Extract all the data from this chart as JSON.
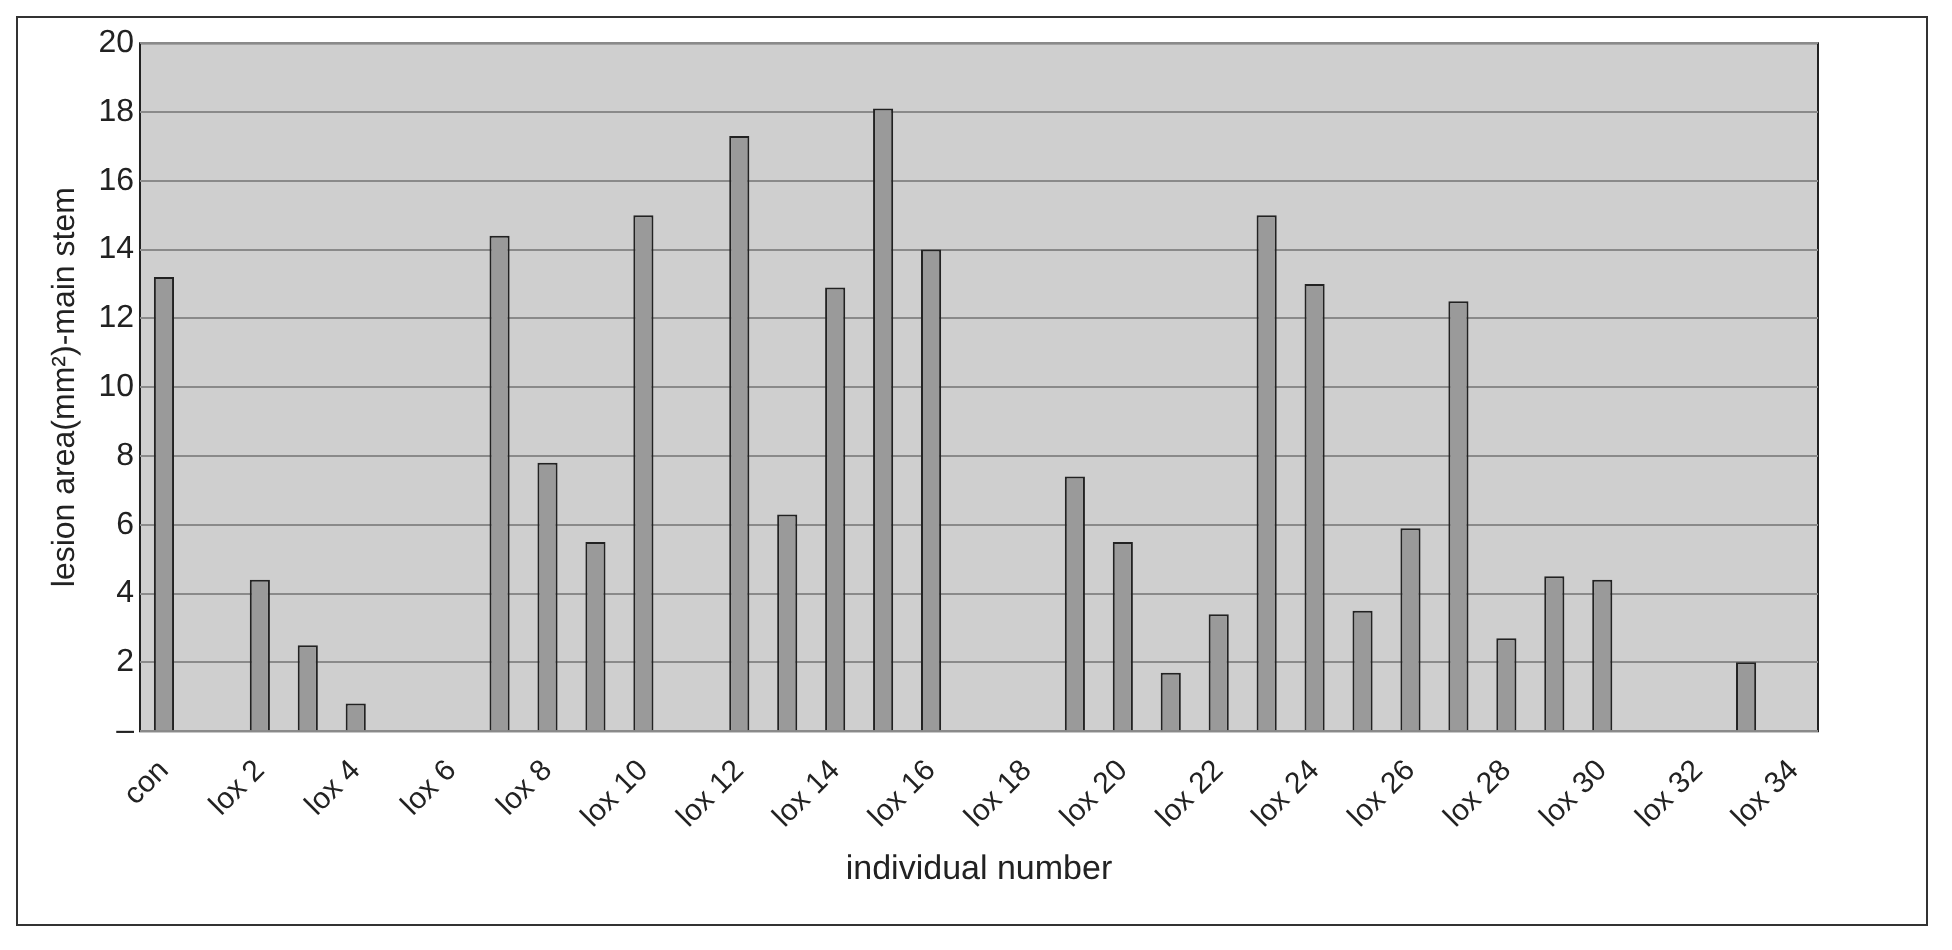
{
  "chart_data": {
    "type": "bar",
    "xlabel": "individual number",
    "ylabel": "lesion area(mm²)-main stem",
    "categories": [
      "con",
      null,
      "lox 2",
      null,
      "lox 4",
      null,
      "lox 6",
      null,
      "lox 8",
      null,
      "lox 10",
      null,
      "lox 12",
      null,
      "lox 14",
      null,
      "lox 16",
      null,
      "lox 18",
      null,
      "lox 20",
      null,
      "lox 22",
      null,
      "lox 24",
      null,
      "lox 26",
      null,
      "lox 28",
      null,
      "lox 30",
      null,
      "lox 32",
      null,
      "lox 34"
    ],
    "values": [
      13.2,
      0,
      4.4,
      2.5,
      0.8,
      0,
      0,
      14.4,
      7.8,
      5.5,
      15.0,
      0,
      17.3,
      6.3,
      12.9,
      18.1,
      14.0,
      0,
      0,
      7.4,
      5.5,
      1.7,
      3.4,
      15.0,
      13.0,
      3.5,
      5.9,
      12.5,
      2.7,
      4.5,
      4.4,
      0,
      0,
      2.0,
      0
    ],
    "color": "#9a9a9a",
    "ylim": [
      0,
      20
    ],
    "yticks": [
      {
        "value": 0,
        "label": "–"
      },
      2,
      4,
      6,
      8,
      10,
      12,
      14,
      16,
      18,
      20
    ],
    "grid": "y"
  }
}
